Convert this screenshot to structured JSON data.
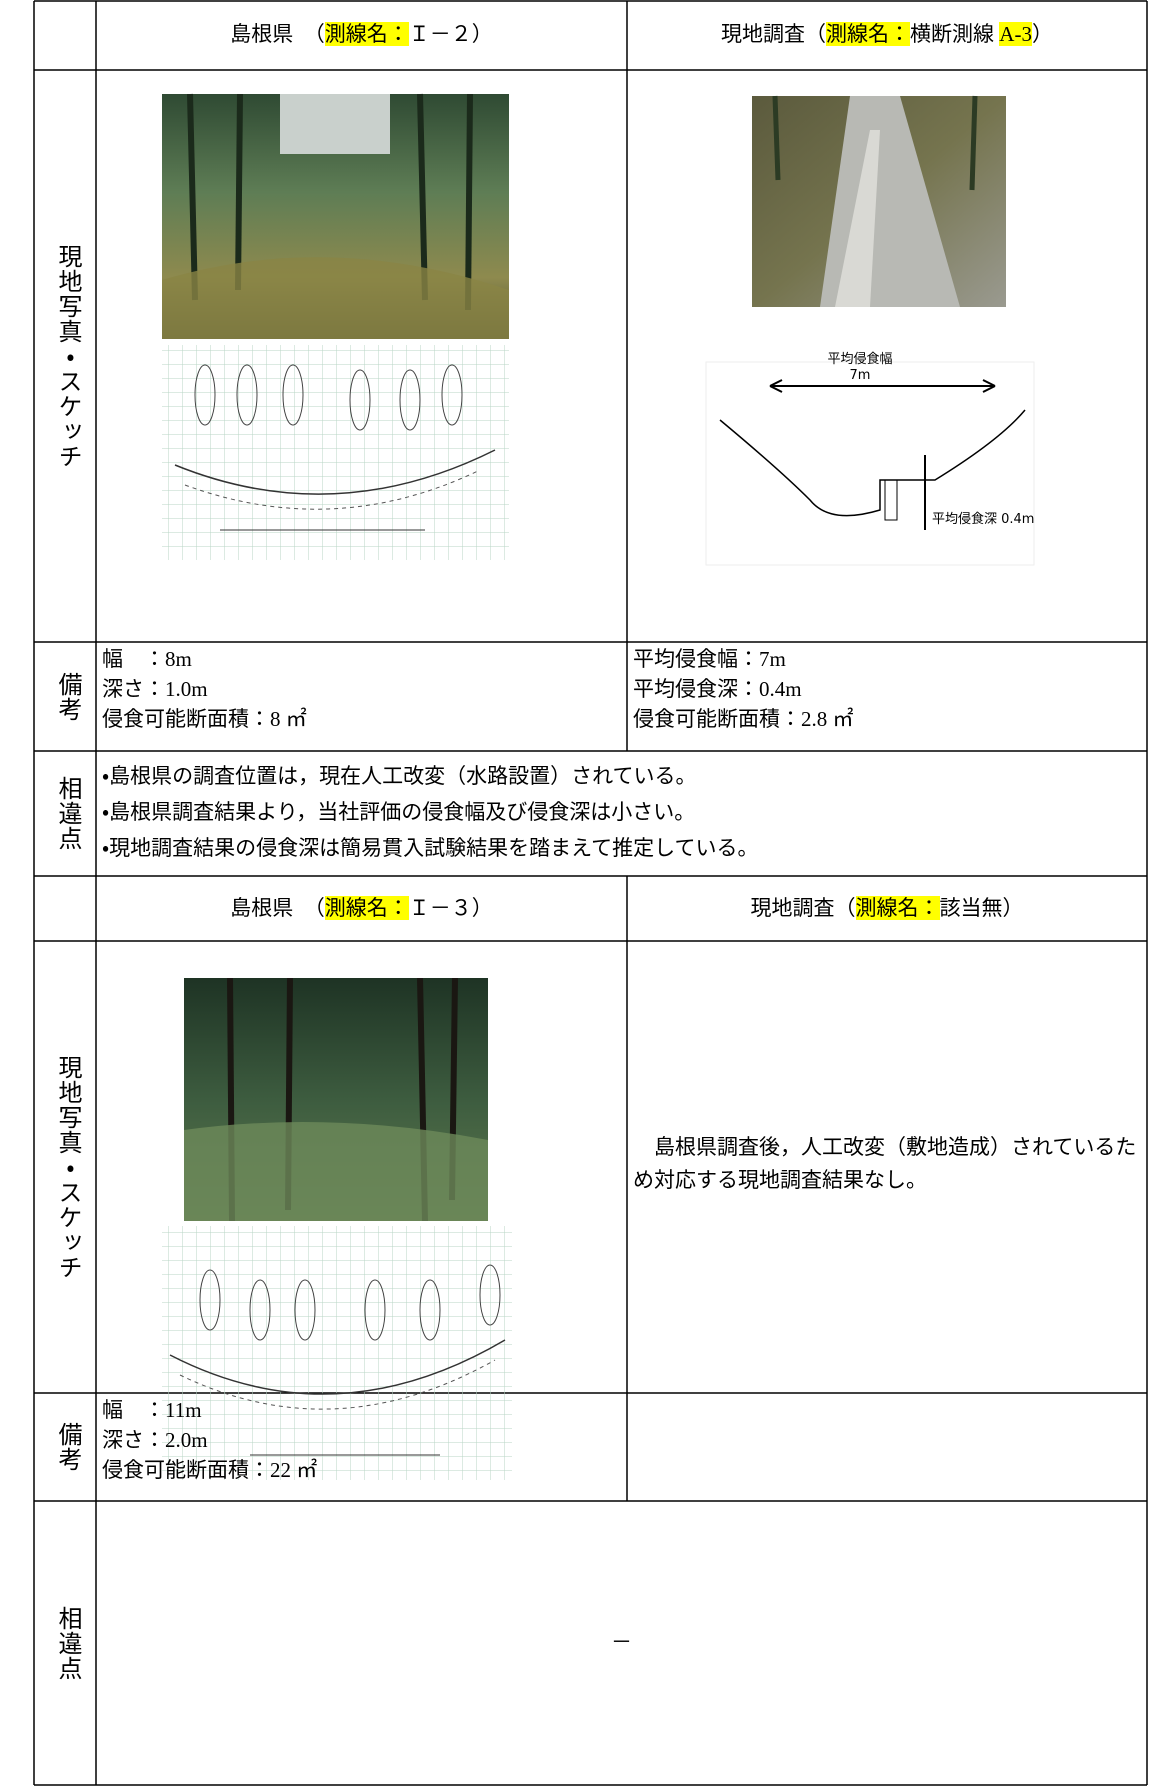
{
  "sections": [
    {
      "header": {
        "left": [
          {
            "text": "島根県　（"
          },
          {
            "text": "測線名：",
            "highlight": true
          },
          {
            "text": "Ｉ－２）"
          }
        ],
        "right": [
          {
            "text": "現地調査（"
          },
          {
            "text": "測線名：",
            "highlight": true
          },
          {
            "text": "横断測線 "
          },
          {
            "text": "A-3",
            "highlight": true
          },
          {
            "text": "）"
          }
        ]
      },
      "photo_label": "現地写真・スケッチ",
      "sketch_labels": {
        "width_title": "平均侵食幅",
        "width": "7m",
        "depth": "平均侵食深 0.4m"
      },
      "remarks_label": "備考",
      "remarks": {
        "left": [
          "幅　：8m",
          "深さ：1.0m",
          "侵食可能断面積：8 ㎡"
        ],
        "right": [
          "平均侵食幅：7m",
          "平均侵食深：0.4m",
          "侵食可能断面積：2.8 ㎡"
        ]
      },
      "diff_label": "相違点",
      "diff": [
        "・島根県の調査位置は，現在人工改変（水路設置）されている。",
        "・島根県調査結果より，当社評価の侵食幅及び侵食深は小さい。",
        "・現地調査結果の侵食深は簡易貫入試験結果を踏まえて推定している。"
      ]
    },
    {
      "header": {
        "left": [
          {
            "text": "島根県　（"
          },
          {
            "text": "測線名：",
            "highlight": true
          },
          {
            "text": "Ｉ－３）"
          }
        ],
        "right": [
          {
            "text": "現地調査（"
          },
          {
            "text": "測線名：",
            "highlight": true
          },
          {
            "text": "該当無）"
          }
        ]
      },
      "photo_label": "現地写真・スケッチ",
      "right_note": "島根県調査後，人工改変（敷地造成）されているため対応する現地調査結果なし。",
      "remarks_label": "備考",
      "remarks": {
        "left": [
          "幅　：11m",
          "深さ：2.0m",
          "侵食可能断面積：22 ㎡"
        ],
        "right": []
      },
      "diff_label": "相違点",
      "diff": [
        "－"
      ]
    }
  ]
}
